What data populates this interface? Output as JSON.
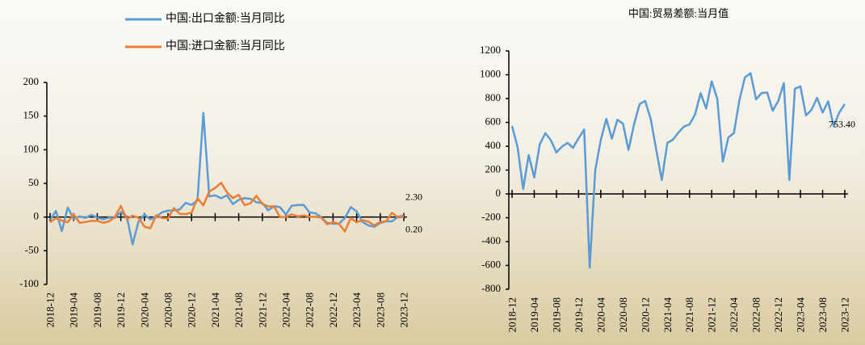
{
  "chart_data": [
    {
      "type": "line",
      "legend": "top",
      "categories": [
        "2018-12",
        null,
        null,
        null,
        "2019-04",
        null,
        null,
        null,
        "2019-08",
        null,
        null,
        null,
        "2019-12",
        null,
        null,
        null,
        "2020-04",
        null,
        null,
        null,
        "2020-08",
        null,
        null,
        null,
        "2020-12",
        null,
        null,
        null,
        "2021-04",
        null,
        null,
        null,
        "2021-08",
        null,
        null,
        null,
        "2021-12",
        null,
        null,
        null,
        "2022-04",
        null,
        null,
        null,
        "2022-08",
        null,
        null,
        null,
        "2022-12",
        null,
        null,
        null,
        "2023-04",
        null,
        null,
        null,
        "2023-08",
        null,
        null,
        null,
        "2023-12"
      ],
      "ylim": [
        -100,
        200
      ],
      "yticks": [
        -100,
        -50,
        0,
        50,
        100,
        150,
        200
      ],
      "series": [
        {
          "name": "中国:出口金额:当月同比",
          "color": "#5b9bd5",
          "values": [
            -4.4,
            9.1,
            -20.8,
            14.2,
            -2.7,
            1.1,
            -1.3,
            3.3,
            -1.0,
            -3.2,
            -0.9,
            -1.1,
            7.6,
            1,
            -40.6,
            -6.6,
            3.5,
            -3.3,
            0.5,
            7.2,
            9.5,
            9.9,
            11.4,
            21.1,
            18.1,
            24.9,
            154.9,
            30.6,
            32.3,
            27.9,
            32.2,
            19.3,
            25.6,
            28.1,
            27.1,
            22.0,
            20.9,
            10,
            16.3,
            14.7,
            3.9,
            16.9,
            17.9,
            18.0,
            7.1,
            5.7,
            -0.3,
            -8.7,
            -9.9,
            -10,
            -1.3,
            14.8,
            8.5,
            -7.5,
            -12.4,
            -14.5,
            -8.8,
            -6.2,
            -6.4,
            0.5,
            2.3
          ],
          "value_labels": [
            null,
            null,
            null,
            null,
            null,
            null,
            null,
            null,
            null,
            null,
            null,
            null,
            null,
            null,
            null,
            null,
            null,
            null,
            null,
            null,
            null,
            null,
            null,
            null,
            null,
            null,
            null,
            null,
            null,
            null,
            null,
            null,
            null,
            null,
            null,
            null,
            null,
            null,
            null,
            null,
            null,
            null,
            null,
            null,
            null,
            null,
            null,
            null,
            null,
            null,
            null,
            null,
            null,
            null,
            null,
            null,
            null,
            null,
            null,
            null,
            "2.30"
          ]
        },
        {
          "name": "中国:进口金额:当月同比",
          "color": "#ed7d31",
          "values": [
            -7.6,
            -1.5,
            -5.2,
            -7.6,
            4.0,
            -8.5,
            -7.3,
            -5.6,
            -5.6,
            -8.5,
            -6.4,
            0.3,
            16.5,
            -3,
            2,
            -0.9,
            -14.2,
            -16.7,
            2.7,
            -1.4,
            -2.1,
            13.2,
            4.7,
            4.5,
            6.5,
            28,
            17.3,
            38.1,
            43.1,
            51.1,
            36.7,
            28.1,
            33.1,
            17.6,
            20.6,
            31.7,
            19.5,
            16,
            15.5,
            0.1,
            0.0,
            4.1,
            1.0,
            2.3,
            0.3,
            0.3,
            -0.7,
            -10.6,
            -7.5,
            -10,
            -21.4,
            -1.4,
            -7.9,
            -4.5,
            -6.8,
            -12.4,
            -7.3,
            -6.2,
            6.4,
            -0.6,
            0.2
          ],
          "value_labels": [
            null,
            null,
            null,
            null,
            null,
            null,
            null,
            null,
            null,
            null,
            null,
            null,
            null,
            null,
            null,
            null,
            null,
            null,
            null,
            null,
            null,
            null,
            null,
            null,
            null,
            null,
            null,
            null,
            null,
            null,
            null,
            null,
            null,
            null,
            null,
            null,
            null,
            null,
            null,
            null,
            null,
            null,
            null,
            null,
            null,
            null,
            null,
            null,
            null,
            null,
            null,
            null,
            null,
            null,
            null,
            null,
            null,
            null,
            null,
            null,
            "0.20"
          ]
        }
      ]
    },
    {
      "type": "line",
      "title": "中国:贸易差额:当月值",
      "categories": [
        "2018-12",
        null,
        null,
        null,
        "2019-04",
        null,
        null,
        null,
        "2019-08",
        null,
        null,
        null,
        "2019-12",
        null,
        null,
        null,
        "2020-04",
        null,
        null,
        null,
        "2020-08",
        null,
        null,
        null,
        "2020-12",
        null,
        null,
        null,
        "2021-04",
        null,
        null,
        null,
        "2021-08",
        null,
        null,
        null,
        "2021-12",
        null,
        null,
        null,
        "2022-04",
        null,
        null,
        null,
        "2022-08",
        null,
        null,
        null,
        "2022-12",
        null,
        null,
        null,
        "2023-04",
        null,
        null,
        null,
        "2023-08",
        null,
        null,
        null,
        "2023-12"
      ],
      "ylim": [
        -800,
        1200
      ],
      "yticks": [
        -800,
        -600,
        -400,
        -200,
        0,
        200,
        400,
        600,
        800,
        1000,
        1200
      ],
      "series": [
        {
          "name": "中国:贸易差额:当月值",
          "color": "#5b9bd5",
          "values": [
            570,
            391,
            41,
            326,
            138,
            417,
            510,
            450,
            348,
            397,
            428,
            387,
            467,
            540,
            -618,
            199,
            453,
            630,
            464,
            623,
            589,
            370,
            584,
            754,
            780,
            630,
            370,
            116,
            428,
            455,
            515,
            565,
            583,
            667,
            845,
            717,
            944,
            800,
            270,
            473,
            511,
            787,
            979,
            1013,
            793,
            847,
            851,
            698,
            780,
            930,
            117,
            882,
            902,
            658,
            706,
            806,
            683,
            777,
            566,
            683,
            753.4
          ],
          "value_labels": [
            null,
            null,
            null,
            null,
            null,
            null,
            null,
            null,
            null,
            null,
            null,
            null,
            null,
            null,
            null,
            null,
            null,
            null,
            null,
            null,
            null,
            null,
            null,
            null,
            null,
            null,
            null,
            null,
            null,
            null,
            null,
            null,
            null,
            null,
            null,
            null,
            null,
            null,
            null,
            null,
            null,
            null,
            null,
            null,
            null,
            null,
            null,
            null,
            null,
            null,
            null,
            null,
            null,
            null,
            null,
            null,
            null,
            null,
            null,
            null,
            "753.40"
          ]
        }
      ]
    }
  ]
}
